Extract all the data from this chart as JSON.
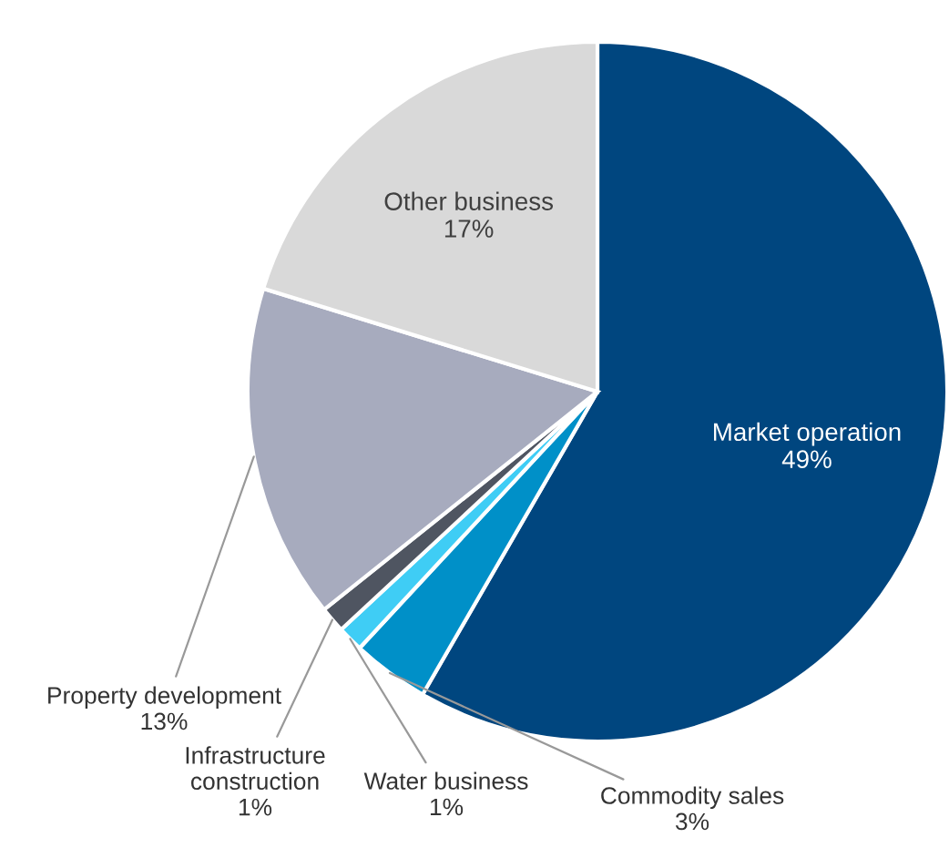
{
  "chart_data": {
    "type": "pie",
    "categories": [
      "Market operation",
      "Commodity sales",
      "Water business",
      "Infrastructure construction",
      "Property development",
      "Other business"
    ],
    "values": [
      49,
      3,
      1,
      1,
      13,
      17
    ],
    "value_labels": [
      "49%",
      "3%",
      "1%",
      "1%",
      "13%",
      "17%"
    ],
    "colors": [
      "#00467f",
      "#0090c8",
      "#3fcdf5",
      "#4f5561",
      "#a7abbe",
      "#d9d9d9"
    ],
    "legend": false
  }
}
